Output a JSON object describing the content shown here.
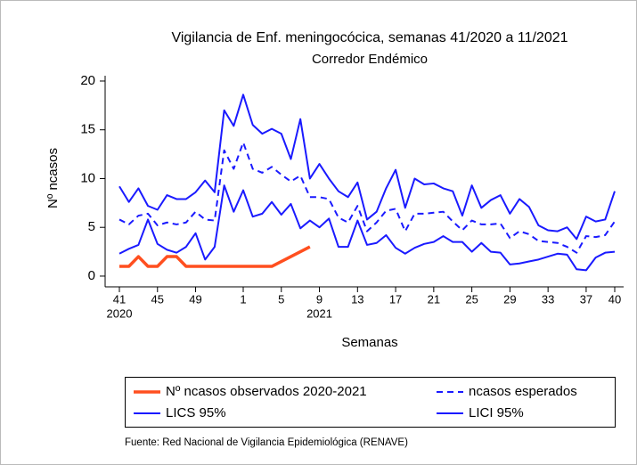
{
  "chart_data": {
    "type": "line",
    "title": "Vigilancia de Enf. meningocócica, semanas 41/2020 a 11/2021",
    "subtitle": "Corredor Endémico",
    "x_label": "Semanas",
    "y_label": "Nº ncasos",
    "source": "Fuente: Red Nacional de Vigilancia Epidemiológica (RENAVE)",
    "categories": [
      "41",
      null,
      null,
      null,
      "45",
      null,
      null,
      null,
      "49",
      null,
      null,
      null,
      null,
      "1",
      null,
      null,
      null,
      "5",
      null,
      null,
      null,
      "9",
      null,
      null,
      null,
      "13",
      null,
      null,
      null,
      "17",
      null,
      null,
      null,
      "21",
      null,
      null,
      null,
      "25",
      null,
      null,
      null,
      "29",
      null,
      null,
      null,
      "33",
      null,
      null,
      null,
      "37",
      null,
      null,
      "40"
    ],
    "category_years": [
      "2020",
      null,
      null,
      null,
      null,
      null,
      null,
      null,
      null,
      null,
      null,
      null,
      null,
      null,
      null,
      null,
      null,
      null,
      null,
      null,
      null,
      "2021",
      null,
      null,
      null,
      null,
      null,
      null,
      null,
      null,
      null,
      null,
      null,
      null,
      null,
      null,
      null,
      null,
      null,
      null,
      null,
      null,
      null,
      null,
      null,
      null,
      null,
      null,
      null,
      null,
      null,
      null,
      null
    ],
    "ylim": [
      -1.1,
      20.5
    ],
    "yticks": [
      0,
      5,
      10,
      15,
      20
    ],
    "series": [
      {
        "name": "Nº ncasos observados 2020-2021",
        "color": "#ff4f1f",
        "style": "solid",
        "width": 3.5,
        "values": [
          1,
          1,
          2,
          1,
          1,
          2,
          2,
          1,
          1,
          1,
          1,
          1,
          1,
          1,
          1,
          1,
          1,
          1.5,
          2,
          2.5,
          3,
          null,
          null,
          null,
          null,
          null,
          null,
          null,
          null,
          null,
          null,
          null,
          null,
          null,
          null,
          null,
          null,
          null,
          null,
          null,
          null,
          null,
          null,
          null,
          null,
          null,
          null,
          null,
          null,
          null,
          null,
          null,
          null
        ]
      },
      {
        "name": "ncasos esperados",
        "color": "#1a1aff",
        "style": "dashed",
        "width": 2,
        "values": [
          5.8,
          5.3,
          6.2,
          6.4,
          5.2,
          5.5,
          5.3,
          5.5,
          6.6,
          5.8,
          5.7,
          12.9,
          11.0,
          13.7,
          11.0,
          10.6,
          11.2,
          10.4,
          9.7,
          10.3,
          8.1,
          8.1,
          7.9,
          6.0,
          5.5,
          7.2,
          4.6,
          5.5,
          6.7,
          6.9,
          4.6,
          6.4,
          6.4,
          6.5,
          6.6,
          5.6,
          4.7,
          5.7,
          5.3,
          5.3,
          5.4,
          3.9,
          4.6,
          4.3,
          3.6,
          3.5,
          3.4,
          3.0,
          2.4,
          4.1,
          4.0,
          4.2,
          5.6
        ]
      },
      {
        "name": "LICS 95%",
        "color": "#1a1aff",
        "style": "solid",
        "width": 2,
        "values": [
          9.2,
          7.6,
          9.0,
          7.2,
          6.8,
          8.3,
          7.9,
          7.9,
          8.6,
          9.8,
          8.6,
          17.0,
          15.4,
          18.6,
          15.5,
          14.6,
          15.1,
          14.6,
          12.0,
          16.1,
          10.0,
          11.5,
          10.0,
          8.7,
          8.1,
          9.6,
          5.8,
          6.6,
          9.0,
          10.9,
          7.0,
          10.0,
          9.4,
          9.5,
          9.0,
          8.7,
          6.2,
          9.3,
          7.0,
          7.8,
          8.3,
          6.4,
          7.9,
          7.1,
          5.2,
          4.7,
          4.6,
          5.0,
          3.8,
          6.1,
          5.6,
          5.8,
          8.7
        ]
      },
      {
        "name": "LICI 95%",
        "color": "#1a1aff",
        "style": "solid",
        "width": 2,
        "values": [
          2.3,
          2.8,
          3.2,
          5.8,
          3.3,
          2.7,
          2.4,
          3.0,
          4.4,
          1.7,
          3.0,
          9.3,
          6.6,
          8.8,
          6.1,
          6.4,
          7.6,
          6.3,
          7.4,
          4.9,
          5.7,
          5.0,
          5.9,
          3.0,
          3.0,
          5.7,
          3.2,
          3.4,
          4.2,
          2.9,
          2.3,
          2.9,
          3.3,
          3.5,
          4.1,
          3.5,
          3.5,
          2.5,
          3.4,
          2.5,
          2.4,
          1.2,
          1.3,
          1.5,
          1.7,
          2.0,
          2.3,
          2.2,
          0.7,
          0.6,
          1.9,
          2.4,
          2.5
        ]
      }
    ]
  }
}
